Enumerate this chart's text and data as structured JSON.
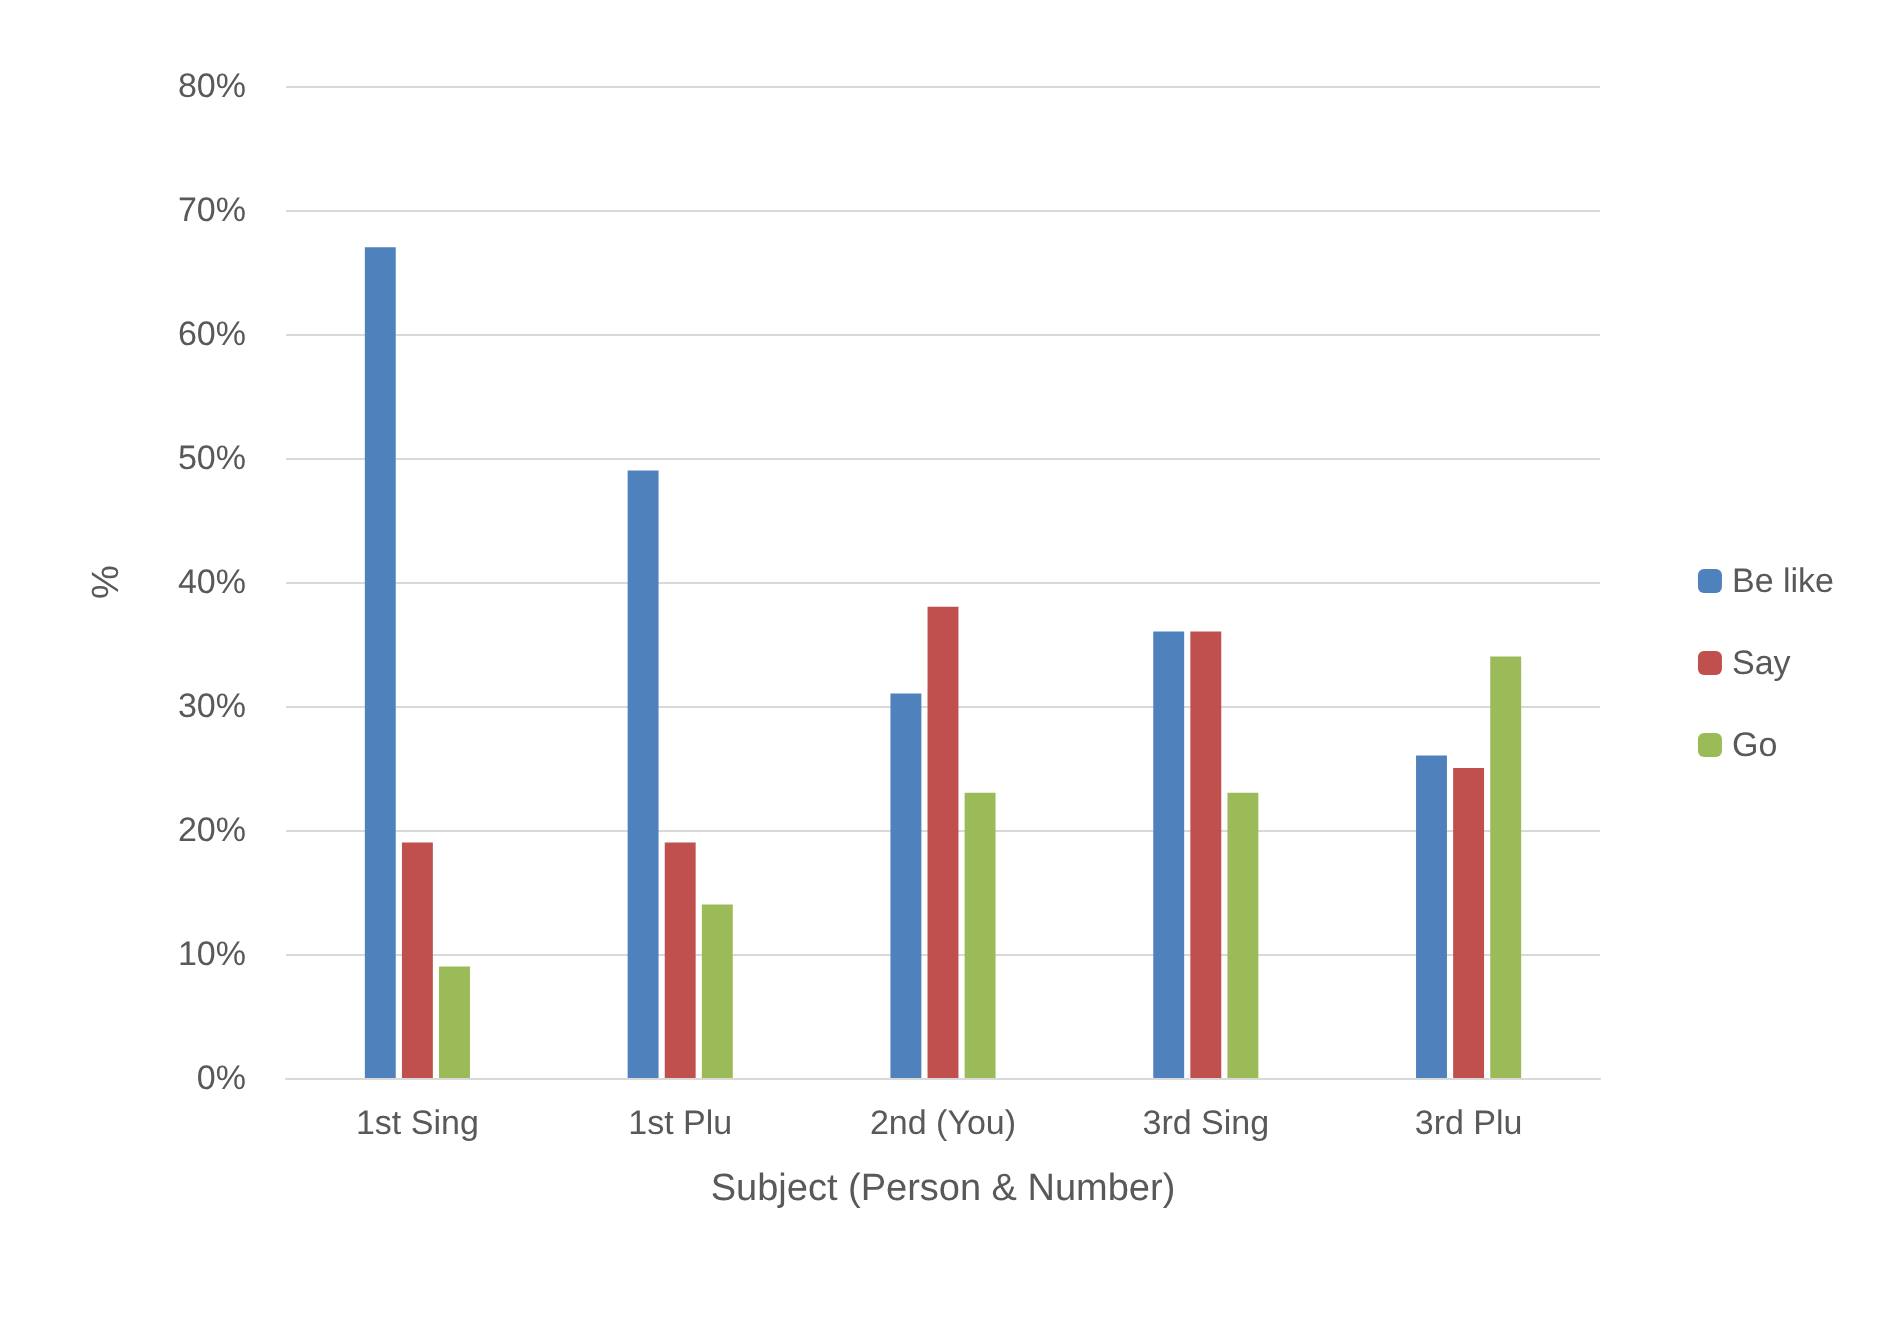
{
  "chart_data": {
    "type": "bar",
    "xlabel": "Subject (Person & Number)",
    "ylabel": "%",
    "categories": [
      "1st Sing",
      "1st Plu",
      "2nd (You)",
      "3rd Sing",
      "3rd Plu"
    ],
    "series": [
      {
        "name": "Be like",
        "color": "#4f81bd",
        "values": [
          67,
          49,
          31,
          36,
          26
        ]
      },
      {
        "name": "Say",
        "color": "#c0504d",
        "values": [
          19,
          19,
          38,
          36,
          25
        ]
      },
      {
        "name": "Go",
        "color": "#9bbb59",
        "values": [
          9,
          14,
          23,
          23,
          34
        ]
      }
    ],
    "ylim": [
      0,
      80
    ],
    "yticks": [
      {
        "value": 0,
        "label": "0%"
      },
      {
        "value": 10,
        "label": "10%"
      },
      {
        "value": 20,
        "label": "20%"
      },
      {
        "value": 30,
        "label": "30%"
      },
      {
        "value": 40,
        "label": "40%"
      },
      {
        "value": 50,
        "label": "50%"
      },
      {
        "value": 60,
        "label": "60%"
      },
      {
        "value": 70,
        "label": "70%"
      },
      {
        "value": 80,
        "label": "80%"
      }
    ],
    "grid": "y",
    "legend": "right"
  }
}
